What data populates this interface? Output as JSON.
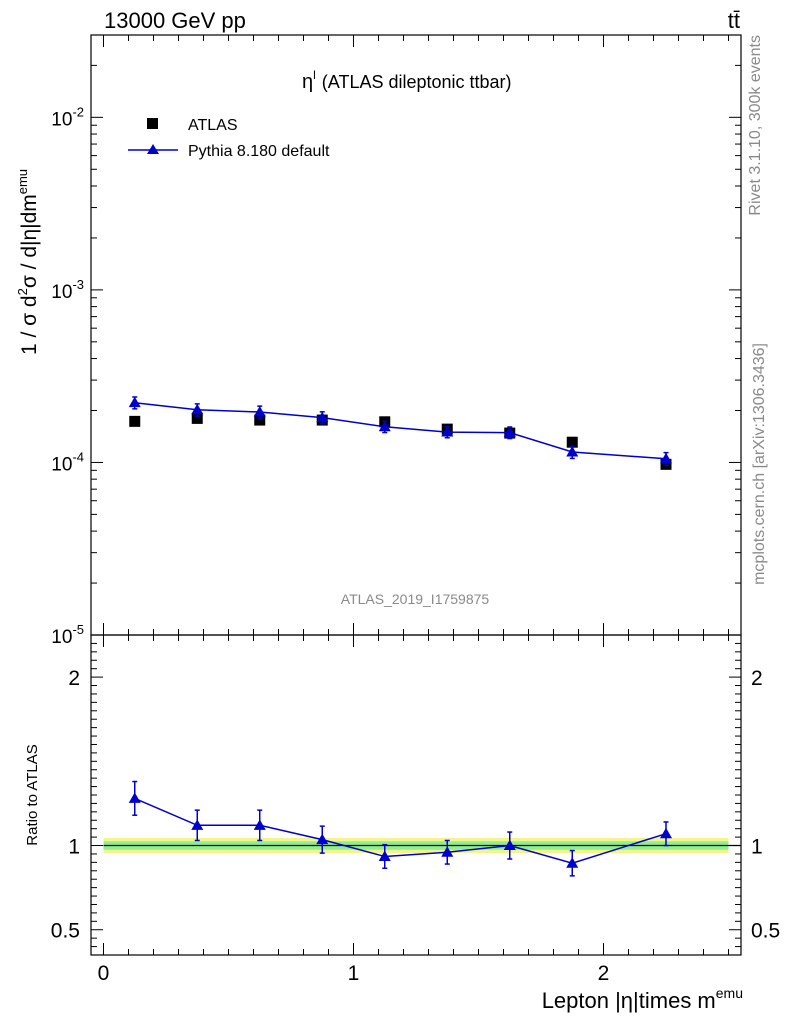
{
  "header": {
    "energy_label": "13000 GeV pp",
    "process_label": "tt̄"
  },
  "side_labels": {
    "rivet": "Rivet 3.1.10,  300k events",
    "mcplots": "mcplots.cern.ch [arXiv:1306.3436]"
  },
  "watermark": "ATLAS_2019_I1759875",
  "chart_data": [
    {
      "type": "scatter",
      "panel": "main",
      "title": "η^l (ATLAS dileptonic ttbar)",
      "title_parts": {
        "symbol": "η",
        "superscript": "l",
        "text": "(ATLAS dileptonic ttbar)"
      },
      "ylabel": "1 / σ  d²σ / d|η|dm^emu",
      "ylabel_parts": {
        "a": "1 / σ  d",
        "sup1": "2",
        "b": "σ / d|η|dm",
        "sup2": "emu"
      },
      "yscale": "log",
      "ylim": [
        1e-05,
        0.03
      ],
      "xlim": [
        -0.05,
        2.55
      ],
      "yticks": [
        {
          "value": 0.01,
          "base": "10",
          "exp": "-2"
        },
        {
          "value": 0.001,
          "base": "10",
          "exp": "-3"
        },
        {
          "value": 0.0001,
          "base": "10",
          "exp": "-4"
        },
        {
          "value": 1e-05,
          "base": "10",
          "exp": "-5"
        }
      ],
      "legend_position": "top-left",
      "series": [
        {
          "name": "ATLAS",
          "marker": "square",
          "color": "#000000",
          "x": [
            0.125,
            0.375,
            0.625,
            0.875,
            1.125,
            1.375,
            1.625,
            1.875,
            2.25
          ],
          "y": [
            0.000173,
            0.00018,
            0.000176,
            0.000176,
            0.000172,
            0.000156,
            0.000148,
            0.000131,
            9.75e-05
          ],
          "yerr": [
            0,
            0,
            0,
            0,
            0,
            0,
            0,
            0,
            0
          ]
        },
        {
          "name": "Pythia 8.180 default",
          "marker": "triangle",
          "color": "#0000cc",
          "x": [
            0.125,
            0.375,
            0.625,
            0.875,
            1.125,
            1.375,
            1.625,
            1.875,
            2.25
          ],
          "y": [
            0.000222,
            0.000202,
            0.000196,
            0.000182,
            0.000161,
            0.00015,
            0.000149,
            0.000115,
            0.000105
          ],
          "yerr": [
            1.75e-05,
            1.65e-05,
            1.6e-05,
            1.45e-05,
            1.2e-05,
            1.1e-05,
            1.15e-05,
            9.5e-06,
            9e-06
          ]
        }
      ]
    },
    {
      "type": "scatter",
      "panel": "ratio",
      "ylabel": "Ratio to ATLAS",
      "xlabel": "Lepton |η|times m^emu",
      "xlabel_parts": {
        "a": "Lepton |η|times m",
        "sup": "emu"
      },
      "ylim": [
        0.35,
        2.25
      ],
      "xlim": [
        -0.05,
        2.55
      ],
      "yticks": [
        {
          "value": 0.5,
          "label": "0.5"
        },
        {
          "value": 1,
          "label": "1"
        },
        {
          "value": 2,
          "label": "2"
        }
      ],
      "xticks": [
        {
          "value": 0,
          "label": "0"
        },
        {
          "value": 1,
          "label": "1"
        },
        {
          "value": 2,
          "label": "2"
        }
      ],
      "reference_line": 1.0,
      "bands": [
        {
          "name": "outer",
          "color": "#f2f58c",
          "low": 0.955,
          "high": 1.045
        },
        {
          "name": "inner",
          "color": "#90ee90",
          "low": 0.975,
          "high": 1.025
        }
      ],
      "series": [
        {
          "name": "Pythia 8.180 default",
          "marker": "triangle",
          "color": "#0000cc",
          "x": [
            0.125,
            0.375,
            0.625,
            0.875,
            1.125,
            1.375,
            1.625,
            1.875,
            2.25
          ],
          "y": [
            1.28,
            1.12,
            1.12,
            1.035,
            0.935,
            0.96,
            1.0,
            0.895,
            1.07
          ],
          "yerr": [
            0.1,
            0.09,
            0.09,
            0.08,
            0.07,
            0.07,
            0.08,
            0.075,
            0.07
          ]
        }
      ]
    }
  ]
}
